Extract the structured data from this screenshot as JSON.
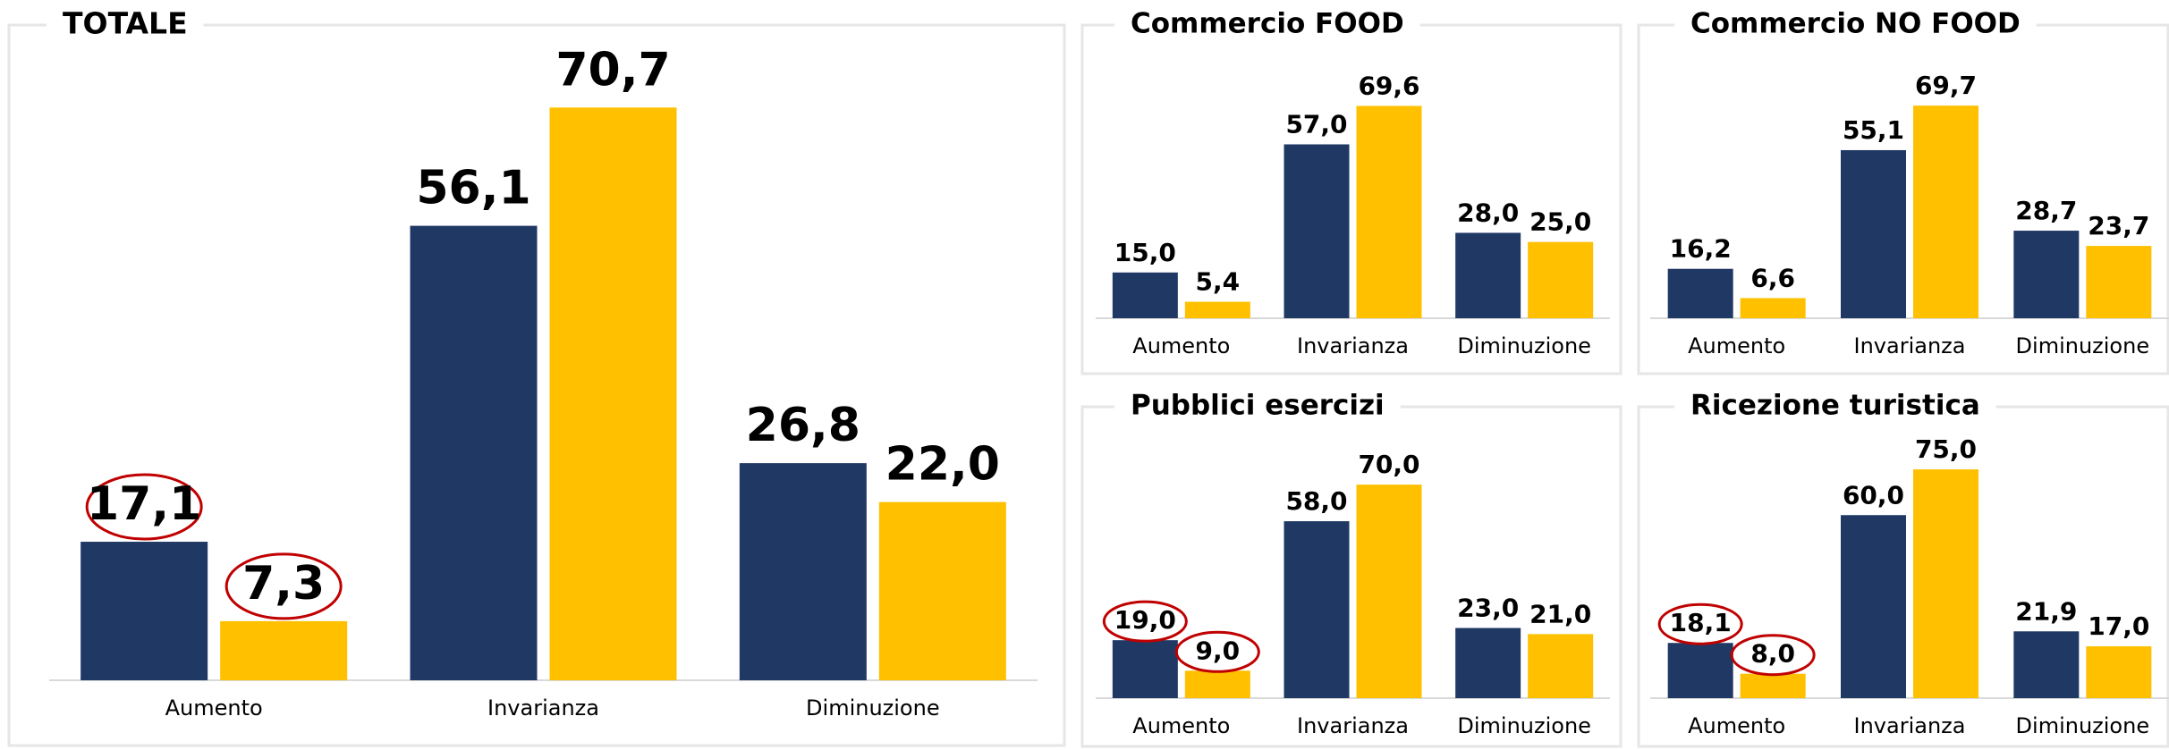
{
  "chart_data": [
    {
      "type": "bar",
      "title": "TOTALE",
      "categories": [
        "Aumento",
        "Invarianza",
        "Diminuzione"
      ],
      "series": [
        {
          "color": "#203864",
          "values": [
            17.1,
            56.1,
            26.8
          ],
          "value_labels": [
            "17,1",
            "56,1",
            "26,8"
          ]
        },
        {
          "color": "#ffc000",
          "values": [
            7.3,
            70.7,
            22.0
          ],
          "value_labels": [
            "7,3",
            "70,7",
            "22,0"
          ]
        }
      ],
      "ylim": [
        0,
        80
      ],
      "highlight": 0,
      "highlight_color": "#c00000"
    },
    {
      "type": "bar",
      "title": "Commercio FOOD",
      "categories": [
        "Aumento",
        "Invarianza",
        "Diminuzione"
      ],
      "series": [
        {
          "color": "#203864",
          "values": [
            15.0,
            57.0,
            28.0
          ],
          "value_labels": [
            "15,0",
            "57,0",
            "28,0"
          ]
        },
        {
          "color": "#ffc000",
          "values": [
            5.4,
            69.6,
            25.0
          ],
          "value_labels": [
            "5,4",
            "69,6",
            "25,0"
          ]
        }
      ],
      "ylim": [
        0,
        80
      ]
    },
    {
      "type": "bar",
      "title": "Commercio NO FOOD",
      "categories": [
        "Aumento",
        "Invarianza",
        "Diminuzione"
      ],
      "series": [
        {
          "color": "#203864",
          "values": [
            16.2,
            55.1,
            28.7
          ],
          "value_labels": [
            "16,2",
            "55,1",
            "28,7"
          ]
        },
        {
          "color": "#ffc000",
          "values": [
            6.6,
            69.7,
            23.7
          ],
          "value_labels": [
            "6,6",
            "69,7",
            "23,7"
          ]
        }
      ],
      "ylim": [
        0,
        80
      ]
    },
    {
      "type": "bar",
      "title": "Pubblici esercizi",
      "categories": [
        "Aumento",
        "Invarianza",
        "Diminuzione"
      ],
      "series": [
        {
          "color": "#203864",
          "values": [
            19.0,
            58.0,
            23.0
          ],
          "value_labels": [
            "19,0",
            "58,0",
            "23,0"
          ]
        },
        {
          "color": "#ffc000",
          "values": [
            9.0,
            70.0,
            21.0
          ],
          "value_labels": [
            "9,0",
            "70,0",
            "21,0"
          ]
        }
      ],
      "ylim": [
        0,
        80
      ],
      "highlight": 0,
      "highlight_color": "#c00000"
    },
    {
      "type": "bar",
      "title": "Ricezione turistica",
      "categories": [
        "Aumento",
        "Invarianza",
        "Diminuzione"
      ],
      "series": [
        {
          "color": "#203864",
          "values": [
            18.1,
            60.0,
            21.9
          ],
          "value_labels": [
            "18,1",
            "60,0",
            "21,9"
          ]
        },
        {
          "color": "#ffc000",
          "values": [
            8.0,
            75.0,
            17.0
          ],
          "value_labels": [
            "8,0",
            "75,0",
            "17,0"
          ]
        }
      ],
      "ylim": [
        0,
        80
      ],
      "highlight": 0,
      "highlight_color": "#c00000"
    }
  ]
}
